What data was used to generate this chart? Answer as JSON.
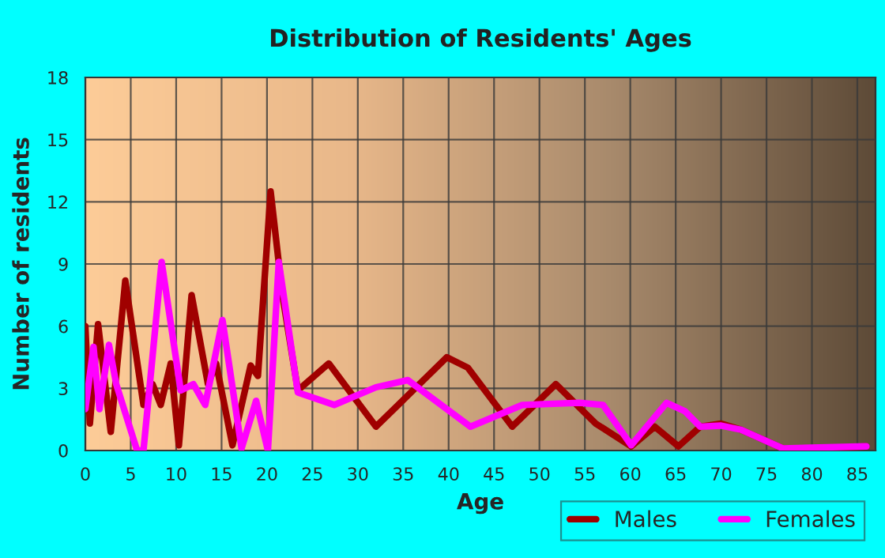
{
  "chart_data": {
    "type": "line",
    "title": "Distribution of Residents' Ages",
    "xlabel": "Age",
    "ylabel": "Number of residents",
    "series": [
      {
        "name": "Males",
        "color": "#a00000",
        "x": [
          0,
          0.5,
          1.4,
          2.8,
          4.4,
          6.4,
          7.4,
          8.3,
          9.4,
          10.3,
          11.7,
          13.5,
          14.4,
          16.2,
          18.2,
          19.0,
          20.4,
          21.7,
          23.4,
          26.8,
          32.0,
          39.8,
          42.1,
          47.0,
          51.8,
          56.2,
          60.1,
          62.7,
          65.3,
          67.7,
          70.0,
          72.2,
          76.8,
          79.1,
          86
        ],
        "values": [
          6.0,
          1.3,
          6.1,
          0.9,
          8.2,
          2.2,
          3.2,
          2.2,
          4.2,
          0.25,
          7.5,
          3.2,
          4.2,
          0.25,
          4.1,
          3.6,
          12.5,
          7.5,
          2.9,
          4.2,
          1.15,
          4.5,
          4.0,
          1.15,
          3.2,
          1.3,
          0.2,
          1.15,
          0.2,
          1.15,
          1.3,
          1.0,
          0.1,
          0.05,
          0.2
        ]
      },
      {
        "name": "Females",
        "color": "#ff00ff",
        "x": [
          0,
          0.9,
          1.55,
          2.6,
          3.4,
          5.7,
          6.4,
          8.4,
          10.5,
          11.9,
          13.2,
          15.1,
          17.2,
          18.8,
          20.1,
          21.3,
          23.4,
          27.4,
          32.0,
          35.5,
          42.4,
          48.1,
          54.4,
          57.0,
          60.1,
          64.0,
          66.0,
          67.7,
          70.0,
          72.2,
          76.8,
          86
        ],
        "values": [
          2.0,
          5.0,
          2.0,
          5.1,
          3.2,
          0,
          0,
          9.1,
          2.9,
          3.2,
          2.2,
          6.3,
          0.1,
          2.4,
          0,
          9.1,
          2.8,
          2.2,
          3.05,
          3.4,
          1.15,
          2.2,
          2.3,
          2.2,
          0.25,
          2.3,
          1.9,
          1.15,
          1.2,
          1.0,
          0.1,
          0.2
        ]
      }
    ],
    "xlim": [
      0,
      87
    ],
    "xticks": [
      0,
      5,
      10,
      15,
      20,
      25,
      30,
      35,
      40,
      45,
      50,
      55,
      60,
      65,
      70,
      75,
      80,
      85
    ],
    "ylim": [
      0,
      18
    ],
    "yticks": [
      0,
      3,
      6,
      9,
      12,
      15,
      18
    ],
    "grid": true,
    "legend": "bottom",
    "marker": "none",
    "line_style": "solid"
  }
}
